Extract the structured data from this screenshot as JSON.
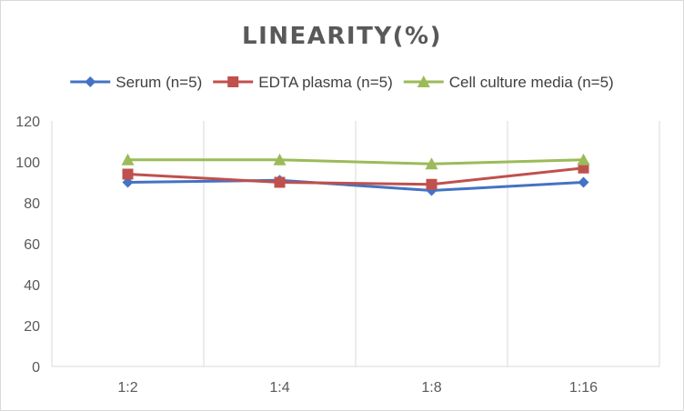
{
  "chart_data": {
    "type": "line",
    "title": "LINEARITY(%)",
    "categories": [
      "1:2",
      "1:4",
      "1:8",
      "1:16"
    ],
    "ylim": [
      0,
      120
    ],
    "yticks": [
      0,
      20,
      40,
      60,
      80,
      100,
      120
    ],
    "grid": "vertical",
    "legend": "top",
    "series": [
      {
        "name": "Serum (n=5)",
        "values": [
          90,
          91,
          86,
          90
        ],
        "color": "#4472c4",
        "marker": "diamond"
      },
      {
        "name": "EDTA plasma (n=5)",
        "values": [
          94,
          90,
          89,
          97
        ],
        "color": "#c0504d",
        "marker": "square"
      },
      {
        "name": "Cell culture media (n=5)",
        "values": [
          101,
          101,
          99,
          101
        ],
        "color": "#9bbb59",
        "marker": "triangle"
      }
    ]
  }
}
